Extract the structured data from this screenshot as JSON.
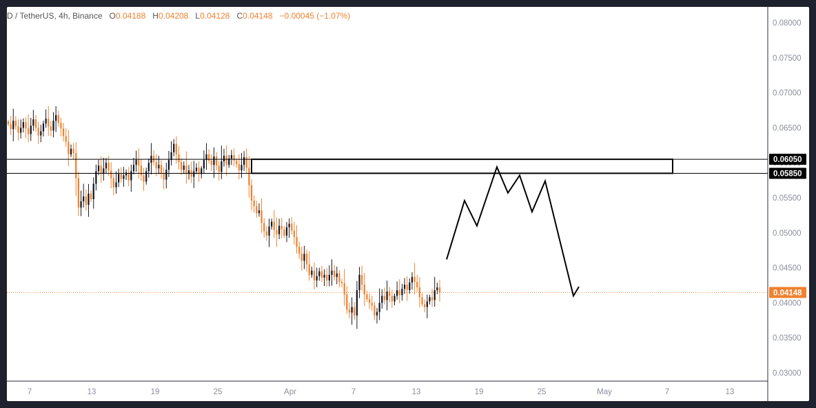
{
  "header": {
    "symbol": "D / TetherUS, 4h, Binance",
    "open_label": "O",
    "open": "0.04188",
    "high_label": "H",
    "high": "0.04208",
    "low_label": "L",
    "low": "0.04128",
    "close_label": "C",
    "close": "0.04148",
    "change": "−0.00045 (−1.07%)"
  },
  "colors": {
    "up": "#131722",
    "down": "#f0812e",
    "accent": "#f0812e",
    "background_frame": "#1e222d"
  },
  "chart_data": {
    "type": "candlestick",
    "ylim": [
      0.028,
      0.0815
    ],
    "y_ticks": [
      "0.08000",
      "0.07500",
      "0.07000",
      "0.06500",
      "0.06000",
      "0.05500",
      "0.05000",
      "0.04500",
      "0.04000",
      "0.03500",
      "0.03000"
    ],
    "x_tick_labels": [
      "7",
      "13",
      "19",
      "25",
      "Apr",
      "7",
      "13",
      "19",
      "25",
      "May",
      "7",
      "13"
    ],
    "current_price": "0.04148",
    "zone": {
      "upper": "0.06050",
      "lower": "0.05850"
    },
    "path_points": [
      {
        "x": 0,
        "y": 0.0462
      },
      {
        "x": 0,
        "y": 0.0546
      },
      {
        "x": 0,
        "y": 0.051
      },
      {
        "x": 0,
        "y": 0.0594
      },
      {
        "x": 0,
        "y": 0.0557
      },
      {
        "x": 0,
        "y": 0.0582
      },
      {
        "x": 0,
        "y": 0.053
      },
      {
        "x": 0,
        "y": 0.0574
      },
      {
        "x": 0,
        "y": 0.041
      },
      {
        "x": 0,
        "y": 0.0423
      }
    ],
    "series": [
      {
        "closes": [
          0.0655,
          0.0648,
          0.066,
          0.0652,
          0.0643,
          0.065,
          0.0658,
          0.0649,
          0.0641,
          0.0653,
          0.0662,
          0.065,
          0.0639,
          0.0645,
          0.0656,
          0.0663,
          0.0652,
          0.0646,
          0.066,
          0.0668,
          0.0657,
          0.0649,
          0.0638,
          0.063,
          0.0612,
          0.062,
          0.0614,
          0.0578,
          0.0536,
          0.0545,
          0.0552,
          0.054,
          0.0556,
          0.0548,
          0.057,
          0.0588,
          0.0596,
          0.0585,
          0.0592,
          0.06,
          0.0589,
          0.0578,
          0.0565,
          0.0572,
          0.0584,
          0.0577,
          0.0582,
          0.0586,
          0.0575,
          0.0588,
          0.0597,
          0.0604,
          0.0596,
          0.0582,
          0.0573,
          0.0588,
          0.06,
          0.061,
          0.0601,
          0.0592,
          0.0597,
          0.0585,
          0.0576,
          0.059,
          0.0604,
          0.0615,
          0.0627,
          0.0612,
          0.0601,
          0.059,
          0.0596,
          0.0584,
          0.0589,
          0.058,
          0.0588,
          0.0593,
          0.0584,
          0.0592,
          0.0604,
          0.0612,
          0.0603,
          0.0597,
          0.0609,
          0.0596,
          0.0587,
          0.0602,
          0.061,
          0.0597,
          0.0606,
          0.0611,
          0.0603,
          0.0598,
          0.0589,
          0.0597,
          0.0608,
          0.0593,
          0.0568,
          0.0546,
          0.0538,
          0.0528,
          0.0532,
          0.0514,
          0.0502,
          0.0496,
          0.0509,
          0.0516,
          0.0504,
          0.0498,
          0.051,
          0.0505,
          0.0496,
          0.0508,
          0.0513,
          0.0503,
          0.0494,
          0.048,
          0.047,
          0.046,
          0.047,
          0.0455,
          0.044,
          0.0446,
          0.0432,
          0.0438,
          0.0445,
          0.0436,
          0.044,
          0.0432,
          0.044,
          0.0446,
          0.0437,
          0.0442,
          0.043,
          0.0428,
          0.0412,
          0.039,
          0.0386,
          0.0394,
          0.0382,
          0.0418,
          0.044,
          0.0426,
          0.0412,
          0.0405,
          0.04,
          0.0396,
          0.0382,
          0.0387,
          0.04,
          0.041,
          0.0404,
          0.0416,
          0.041,
          0.0402,
          0.041,
          0.0418,
          0.0411,
          0.042,
          0.0426,
          0.0418,
          0.0429,
          0.0437,
          0.043,
          0.0422,
          0.0408,
          0.0398,
          0.0394,
          0.0402,
          0.0408,
          0.0404,
          0.0418,
          0.0422,
          0.04148
        ]
      }
    ]
  }
}
